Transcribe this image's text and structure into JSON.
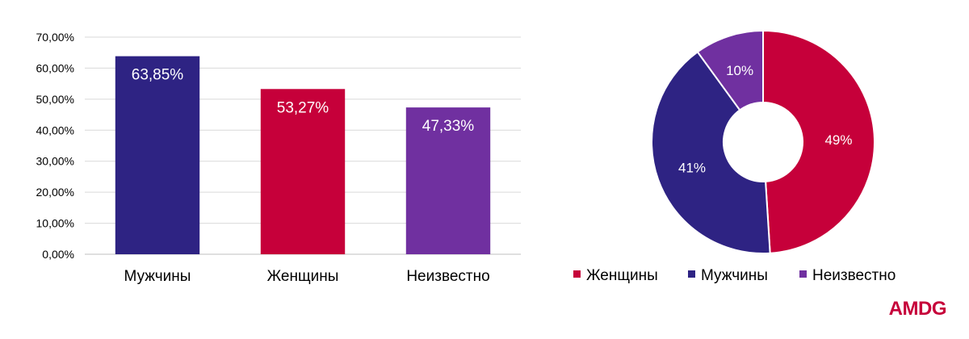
{
  "chart_data": [
    {
      "type": "bar",
      "categories": [
        "Мужчины",
        "Женщины",
        "Неизвестно"
      ],
      "values": [
        63.85,
        53.27,
        47.33
      ],
      "data_labels": [
        "63,85%",
        "53,27%",
        "47,33%"
      ],
      "colors": [
        "#2e2383",
        "#c6003a",
        "#7030a0"
      ],
      "ylim": [
        0,
        70
      ],
      "yticks": [
        "0,00%",
        "10,00%",
        "20,00%",
        "30,00%",
        "40,00%",
        "50,00%",
        "60,00%",
        "70,00%"
      ],
      "grid": true
    },
    {
      "type": "pie",
      "donut": true,
      "slices": [
        {
          "label": "Женщины",
          "value": 49,
          "display": "49%",
          "color": "#c6003a"
        },
        {
          "label": "Мужчины",
          "value": 41,
          "display": "41%",
          "color": "#2e2383"
        },
        {
          "label": "Неизвестно",
          "value": 10,
          "display": "10%",
          "color": "#7030a0"
        }
      ],
      "legend_position": "bottom"
    }
  ],
  "logo": {
    "text": "AMDG",
    "color": "#c6003a"
  }
}
